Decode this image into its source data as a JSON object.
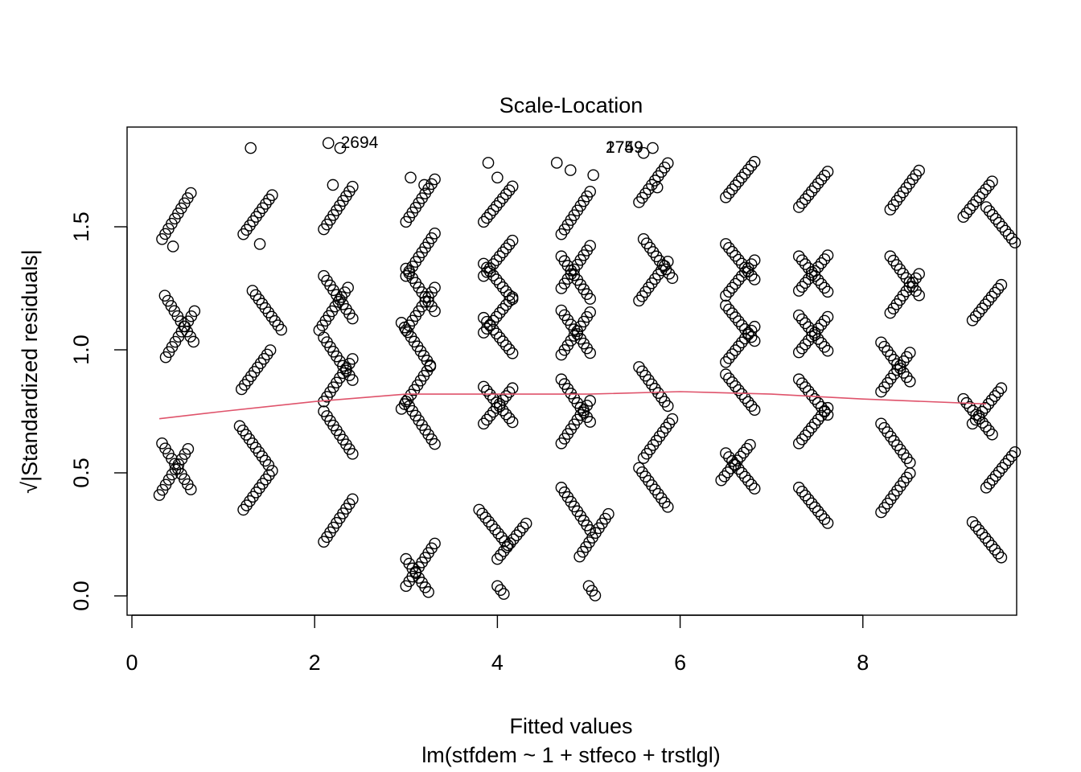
{
  "chart_data": {
    "type": "scatter",
    "title": "Scale-Location",
    "xlabel": "Fitted values",
    "subtitle": "lm(stfdem ~ 1 + stfeco + trstlgl)",
    "ylabel": "√|Standardized residuals|",
    "xlim": [
      0,
      9.5
    ],
    "ylim": [
      0,
      1.9
    ],
    "x_ticks": [
      0,
      2,
      4,
      6,
      8
    ],
    "x_tick_labels": [
      "0",
      "2",
      "4",
      "6",
      "8"
    ],
    "y_ticks": [
      0.0,
      0.5,
      1.0,
      1.5
    ],
    "y_tick_labels": [
      "0.0",
      "0.5",
      "1.0",
      "1.5"
    ],
    "grid": false,
    "point_style": "open-circle",
    "colors": {
      "points": "#000000",
      "smoother": "#DF536B",
      "frame": "#000000"
    },
    "clusters": [
      {
        "x": 0.3,
        "strands": [
          [
            0.33,
            1.45
          ],
          [
            0.36,
            1.22
          ],
          [
            0.37,
            0.97
          ],
          [
            0.33,
            0.62
          ],
          [
            0.3,
            0.41
          ]
        ],
        "slope": 0.13
      },
      {
        "x": 1.2,
        "strands": [
          [
            1.22,
            1.47
          ],
          [
            1.32,
            1.24
          ],
          [
            1.2,
            0.84
          ],
          [
            1.18,
            0.69
          ],
          [
            1.22,
            0.35
          ]
        ],
        "slope": 0.11
      },
      {
        "x": 2.1,
        "strands": [
          [
            2.1,
            1.49
          ],
          [
            2.1,
            1.3
          ],
          [
            2.05,
            1.08
          ],
          [
            2.1,
            1.05
          ],
          [
            2.1,
            0.79
          ],
          [
            2.1,
            0.75
          ],
          [
            2.1,
            0.22
          ]
        ],
        "slope": 0.12
      },
      {
        "x": 3.0,
        "strands": [
          [
            3.0,
            1.52
          ],
          [
            3.0,
            1.33
          ],
          [
            3.0,
            1.3
          ],
          [
            2.95,
            1.11
          ],
          [
            3.0,
            1.08
          ],
          [
            3.0,
            0.79
          ],
          [
            2.95,
            0.76
          ],
          [
            3.0,
            0.15
          ],
          [
            3.0,
            0.04
          ]
        ],
        "slope": 0.12
      },
      {
        "x": 4.0,
        "strands": [
          [
            3.85,
            1.52
          ],
          [
            3.85,
            1.35
          ],
          [
            3.85,
            1.3
          ],
          [
            3.85,
            1.13
          ],
          [
            3.85,
            1.07
          ],
          [
            3.85,
            0.85
          ],
          [
            3.85,
            0.7
          ],
          [
            3.8,
            0.35
          ],
          [
            4.0,
            0.15
          ],
          [
            4.0,
            0.04
          ]
        ],
        "slope": 0.1
      },
      {
        "x": 4.9,
        "strands": [
          [
            4.7,
            1.47
          ],
          [
            4.7,
            1.38
          ],
          [
            4.7,
            1.25
          ],
          [
            4.7,
            1.16
          ],
          [
            4.7,
            0.98
          ],
          [
            4.7,
            0.88
          ],
          [
            4.7,
            0.62
          ],
          [
            4.7,
            0.44
          ],
          [
            4.9,
            0.16
          ],
          [
            5.0,
            0.04
          ]
        ],
        "slope": 0.12
      },
      {
        "x": 5.7,
        "strands": [
          [
            5.55,
            1.6
          ],
          [
            5.6,
            1.45
          ],
          [
            5.55,
            1.2
          ],
          [
            5.55,
            0.93
          ],
          [
            5.6,
            0.56
          ],
          [
            5.55,
            0.52
          ]
        ],
        "slope": 0.11
      },
      {
        "x": 6.6,
        "strands": [
          [
            6.5,
            1.62
          ],
          [
            6.5,
            1.43
          ],
          [
            6.5,
            1.22
          ],
          [
            6.5,
            1.18
          ],
          [
            6.5,
            0.95
          ],
          [
            6.5,
            0.9
          ],
          [
            6.45,
            0.47
          ],
          [
            6.5,
            0.58
          ]
        ],
        "slope": 0.1
      },
      {
        "x": 7.5,
        "strands": [
          [
            7.3,
            1.58
          ],
          [
            7.3,
            1.38
          ],
          [
            7.3,
            1.24
          ],
          [
            7.3,
            1.14
          ],
          [
            7.3,
            0.99
          ],
          [
            7.3,
            0.88
          ],
          [
            7.3,
            0.62
          ],
          [
            7.3,
            0.44
          ]
        ],
        "slope": 0.1
      },
      {
        "x": 8.4,
        "strands": [
          [
            8.3,
            1.57
          ],
          [
            8.3,
            1.38
          ],
          [
            8.3,
            1.15
          ],
          [
            8.2,
            1.03
          ],
          [
            8.2,
            0.83
          ],
          [
            8.2,
            0.7
          ],
          [
            8.2,
            0.34
          ]
        ],
        "slope": 0.11
      },
      {
        "x": 9.2,
        "strands": [
          [
            9.1,
            1.54
          ],
          [
            9.35,
            1.58
          ],
          [
            9.2,
            1.12
          ],
          [
            9.1,
            0.8
          ],
          [
            9.2,
            0.7
          ],
          [
            9.2,
            0.3
          ],
          [
            9.35,
            0.44
          ]
        ],
        "slope": 0.1
      }
    ],
    "extra_points": [
      [
        1.3,
        1.82
      ],
      [
        2.15,
        1.84
      ],
      [
        2.28,
        1.82
      ],
      [
        2.2,
        1.67
      ],
      [
        3.05,
        1.7
      ],
      [
        3.2,
        1.67
      ],
      [
        4.0,
        1.7
      ],
      [
        4.65,
        1.76
      ],
      [
        4.8,
        1.73
      ],
      [
        5.05,
        1.71
      ],
      [
        5.6,
        1.8
      ],
      [
        5.7,
        1.82
      ],
      [
        5.75,
        1.66
      ],
      [
        0.45,
        1.42
      ],
      [
        1.4,
        1.43
      ],
      [
        3.9,
        1.76
      ]
    ],
    "labeled_points": [
      {
        "label": "2694",
        "x": 2.25,
        "y": 1.84
      },
      {
        "label": "1749",
        "x": 5.15,
        "y": 1.82
      },
      {
        "label": "2759",
        "x": 5.15,
        "y": 1.82
      }
    ],
    "smoother": {
      "x": [
        0.3,
        1.0,
        2.0,
        3.0,
        4.0,
        5.0,
        6.0,
        7.0,
        8.0,
        9.35
      ],
      "y": [
        0.72,
        0.75,
        0.79,
        0.82,
        0.82,
        0.82,
        0.83,
        0.82,
        0.8,
        0.78
      ]
    }
  }
}
